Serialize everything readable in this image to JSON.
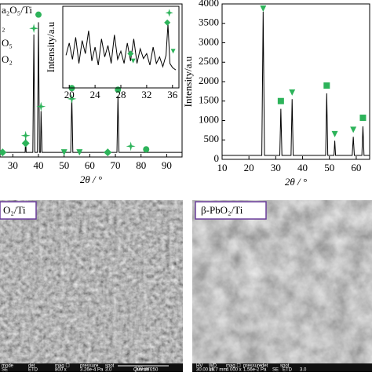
{
  "chart_data": [
    {
      "type": "line",
      "x_label": "2θ / °",
      "xlim": [
        25,
        96
      ],
      "xticks": [
        30,
        40,
        50,
        60,
        70,
        80,
        90
      ],
      "ylim": [
        0,
        100
      ],
      "legend_fragments": [
        "a₂O₅/Ti",
        "₂",
        "O₅",
        "O₂"
      ],
      "series": [
        {
          "color": "#000000",
          "x": [
            25,
            33,
            34.8,
            35,
            35.2,
            37.8,
            38.2,
            38.6,
            39.6,
            40,
            40.4,
            40.8,
            41,
            41.4,
            52.6,
            53,
            53.4,
            70.6,
            71,
            71.4,
            96
          ],
          "values": [
            3,
            3,
            3,
            12,
            3,
            3,
            80,
            3,
            3,
            88,
            3,
            3,
            30,
            3,
            3,
            40,
            3,
            3,
            40,
            3,
            3
          ]
        },
        {
          "marker": "circle",
          "color": "#2db35a",
          "x": [
            40,
            53,
            71,
            82
          ],
          "values": [
            93,
            45,
            44,
            5
          ]
        },
        {
          "marker": "star",
          "color": "#2db35a",
          "x": [
            38.2,
            41,
            53,
            35,
            76
          ],
          "values": [
            84,
            33,
            38,
            14,
            7
          ]
        },
        {
          "marker": "diamond",
          "color": "#2db35a",
          "x": [
            35,
            67,
            26
          ],
          "values": [
            9,
            3,
            3
          ]
        },
        {
          "marker": "triangle",
          "color": "#2db35a",
          "x": [
            50,
            56
          ],
          "values": [
            3,
            3
          ]
        }
      ]
    },
    {
      "type": "line",
      "y_label": "Intensity/a.u",
      "xlim": [
        19,
        37
      ],
      "xticks": [
        20,
        24,
        28,
        32,
        36
      ],
      "ylim": [
        0,
        100
      ],
      "series": [
        {
          "color": "#000000",
          "x": [
            19.5,
            20,
            20.5,
            21,
            21.5,
            22,
            22.5,
            23,
            23.5,
            24,
            24.5,
            25,
            25.5,
            26,
            26.5,
            27,
            27.5,
            28,
            28.5,
            29,
            29.5,
            30,
            30.5,
            31,
            31.5,
            32,
            32.5,
            33,
            33.5,
            34,
            34.5,
            35,
            35.3,
            35.6,
            36,
            36.5
          ],
          "values": [
            40,
            55,
            35,
            62,
            30,
            58,
            42,
            70,
            33,
            50,
            28,
            60,
            38,
            52,
            30,
            65,
            35,
            45,
            30,
            55,
            33,
            60,
            30,
            48,
            36,
            42,
            28,
            50,
            30,
            38,
            26,
            40,
            78,
            30,
            25,
            22
          ]
        },
        {
          "marker": "star",
          "color": "#2db35a",
          "x": [
            35.5
          ],
          "values": [
            92
          ]
        },
        {
          "marker": "diamond",
          "color": "#2db35a",
          "x": [
            35.2,
            29.5
          ],
          "values": [
            80,
            42
          ]
        },
        {
          "marker": "triangle",
          "color": "#2db35a",
          "x": [
            36.1,
            29.9
          ],
          "values": [
            45,
            33
          ]
        }
      ]
    },
    {
      "type": "line",
      "x_label": "2θ / °",
      "y_label": "Intensity/a.u",
      "xlim": [
        10,
        65
      ],
      "xticks": [
        10,
        20,
        30,
        40,
        50,
        60
      ],
      "ylim": [
        0,
        4000
      ],
      "yticks": [
        0,
        500,
        1000,
        1500,
        2000,
        2500,
        3000,
        3500,
        4000
      ],
      "series": [
        {
          "color": "#000000",
          "x": [
            10,
            24.8,
            25.3,
            25.8,
            31.5,
            31.9,
            32.3,
            35.7,
            36.1,
            36.5,
            48.6,
            49,
            49.4,
            51.7,
            52,
            52.3,
            58.5,
            58.9,
            59.3,
            62.1,
            62.5,
            62.9,
            65
          ],
          "values": [
            100,
            100,
            3800,
            100,
            100,
            1300,
            100,
            100,
            1550,
            100,
            100,
            1700,
            100,
            100,
            480,
            100,
            100,
            580,
            100,
            100,
            850,
            100,
            100
          ]
        },
        {
          "marker": "triangle",
          "color": "#2db35a",
          "x": [
            25.3,
            36.1,
            52,
            58.9
          ],
          "values": [
            3880,
            1720,
            650,
            760
          ]
        },
        {
          "marker": "square",
          "color": "#2db35a",
          "x": [
            31.9,
            49,
            62.5
          ],
          "values": [
            1500,
            1900,
            1070
          ]
        }
      ]
    }
  ],
  "images": [
    {
      "label": "O₂/Ti",
      "info": [
        "mode",
        "det",
        "mag ☐",
        "pressure",
        "spot",
        "SE",
        "ETD",
        "800 x",
        "3.26e-4 Pa",
        "3.0",
        "Quanta 250"
      ],
      "scale": "100 μm"
    },
    {
      "label": "β-PbO₂/Ti",
      "info": [
        "HV",
        "WD",
        "mag ☐",
        "pressure",
        "det",
        "spot",
        "30.00 kV",
        "16.7 mm",
        "4 000 x",
        "1.56e-2 Pa",
        "SE",
        "ETD",
        "3.0"
      ]
    }
  ]
}
